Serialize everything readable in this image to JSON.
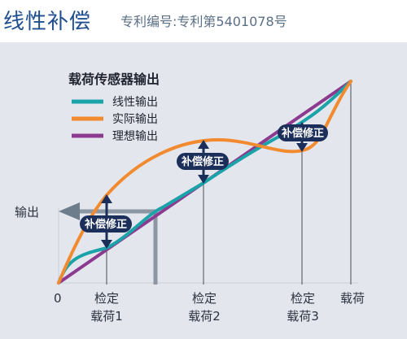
{
  "header": {
    "title": "线性补偿",
    "subtitle": "专利编号:专利第5401078号"
  },
  "diagram": {
    "legend_title": "载荷传感器输出",
    "legend": [
      {
        "label": "线性输出",
        "color": "#1aa3a8"
      },
      {
        "label": "实际输出",
        "color": "#f28a2f"
      },
      {
        "label": "理想输出",
        "color": "#8b3a8f"
      }
    ],
    "y_label": "输出",
    "origin_label": "0",
    "x_labels": [
      {
        "line1": "检定",
        "line2": "载荷1"
      },
      {
        "line1": "检定",
        "line2": "载荷2"
      },
      {
        "line1": "检定",
        "line2": "载荷3"
      },
      {
        "line1": "载荷",
        "line2": ""
      }
    ],
    "badge_label": "补偿修正",
    "colors": {
      "navy": "#1b2f5a",
      "arrow_gray": "#6e7d8c",
      "guide_gray": "#8d97a3"
    }
  }
}
